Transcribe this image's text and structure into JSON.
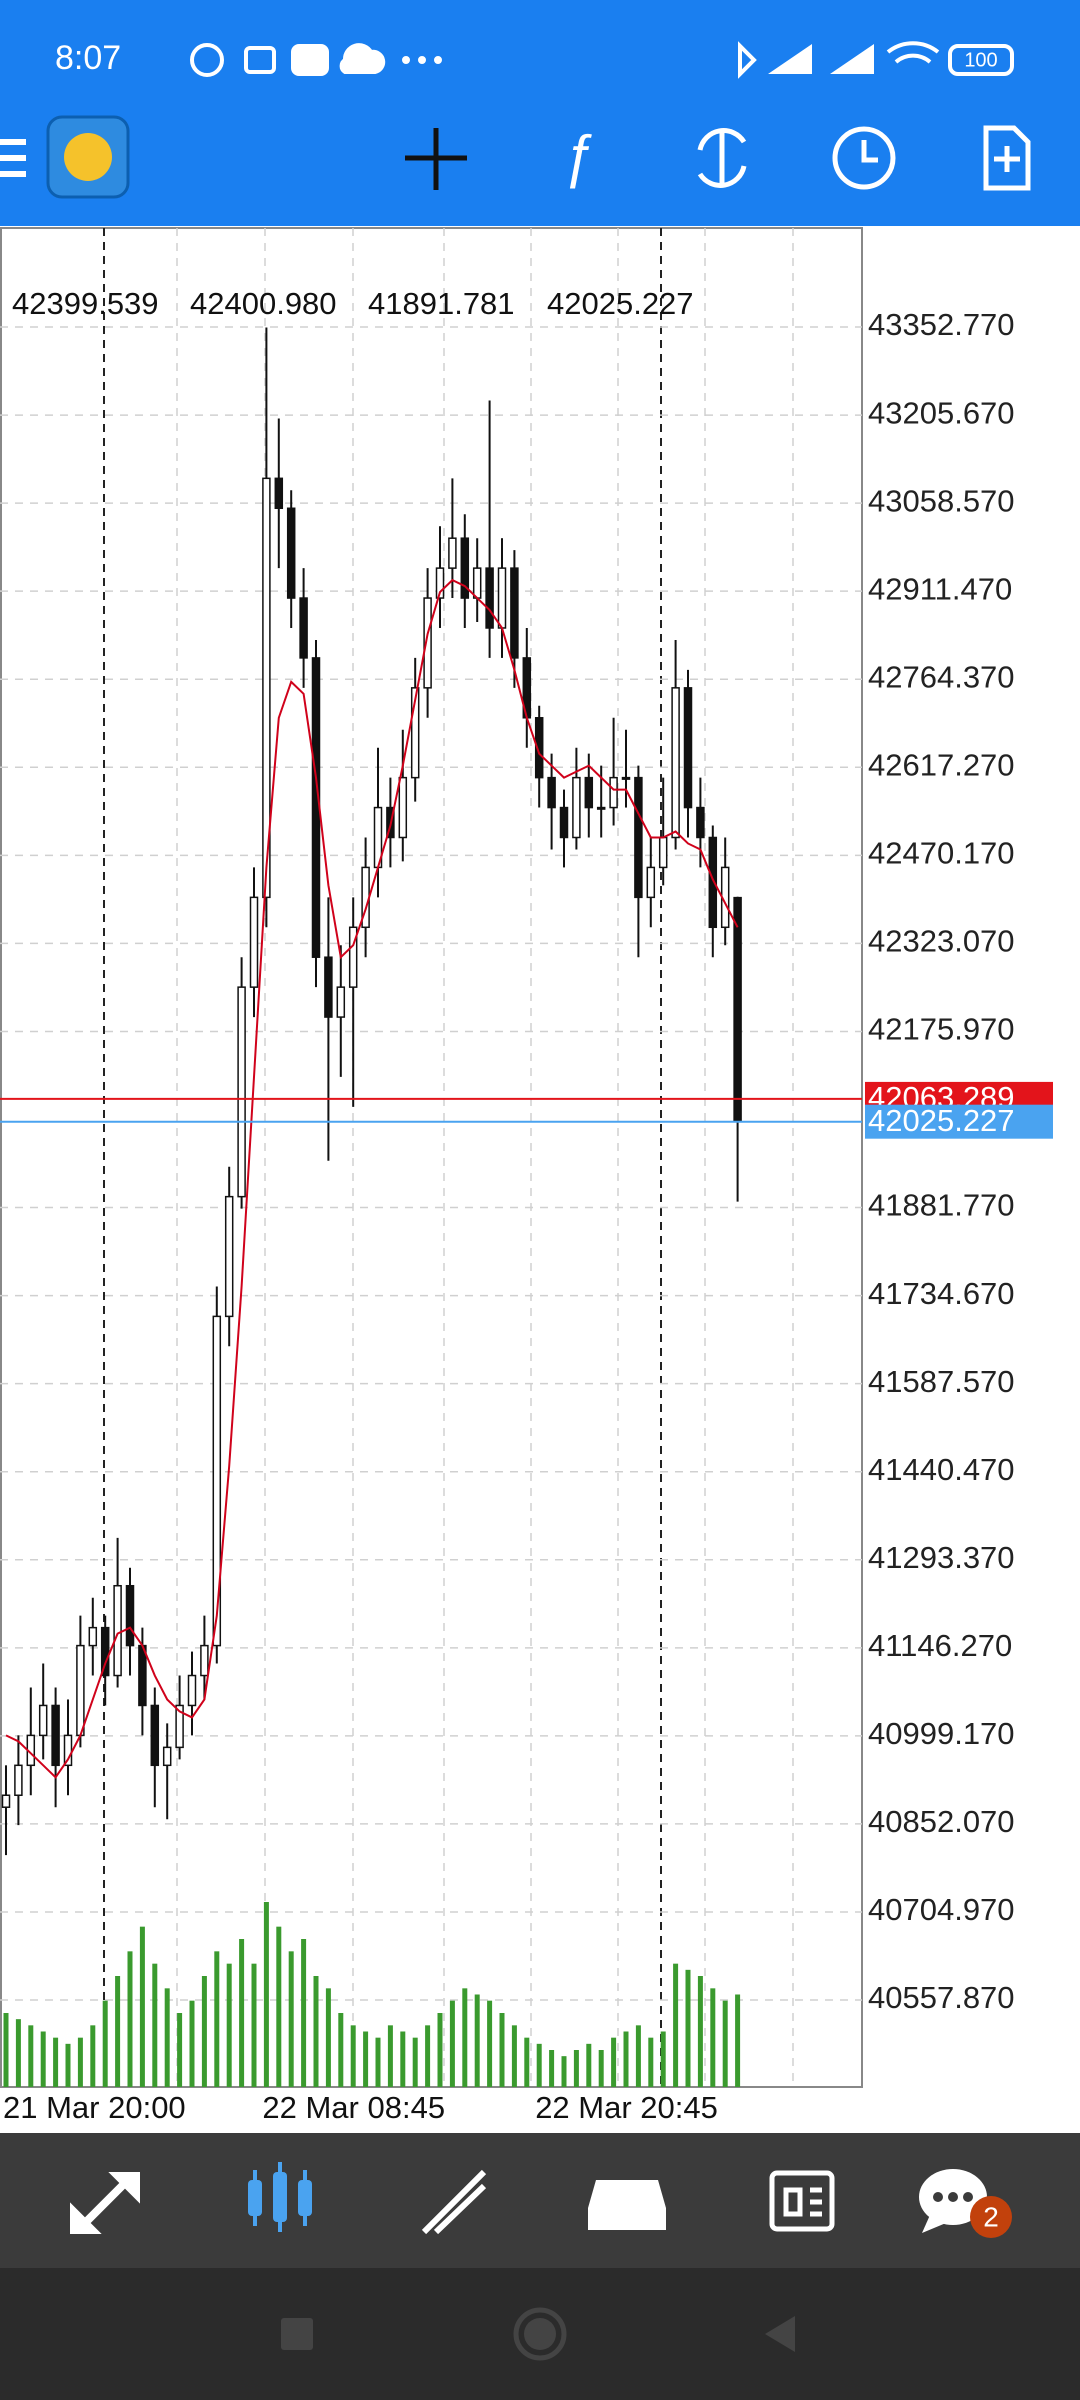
{
  "status_bar": {
    "time": "8:07",
    "battery": "100"
  },
  "chart_data": {
    "type": "candlestick",
    "ohlc_header": [
      "42399.539",
      "42400.980",
      "41891.781",
      "42025.227"
    ],
    "categories": [
      "21 Mar 20:00",
      null,
      null,
      null,
      null,
      null,
      null,
      null,
      null,
      null,
      null,
      null,
      null,
      null,
      null,
      null,
      null,
      null,
      null,
      null,
      null,
      "22 Mar 08:45",
      null,
      null,
      null,
      null,
      null,
      null,
      null,
      null,
      null,
      null,
      null,
      null,
      null,
      null,
      null,
      null,
      null,
      null,
      null,
      null,
      null,
      "22 Mar 20:45",
      null,
      null,
      null,
      null,
      null,
      null,
      null,
      null,
      null,
      null,
      null,
      null,
      null,
      null,
      null,
      null
    ],
    "candles": [
      [
        40880,
        40950,
        40800,
        40900
      ],
      [
        40900,
        41000,
        40850,
        40950
      ],
      [
        40950,
        41080,
        40900,
        41000
      ],
      [
        41000,
        41120,
        40960,
        41050
      ],
      [
        41050,
        41080,
        40880,
        40950
      ],
      [
        40950,
        41060,
        40900,
        41000
      ],
      [
        41000,
        41200,
        40980,
        41150
      ],
      [
        41150,
        41230,
        41100,
        41180
      ],
      [
        41180,
        41200,
        41050,
        41100
      ],
      [
        41100,
        41330,
        41080,
        41250
      ],
      [
        41250,
        41280,
        41100,
        41150
      ],
      [
        41150,
        41180,
        41000,
        41050
      ],
      [
        41050,
        41080,
        40880,
        40950
      ],
      [
        40950,
        41020,
        40860,
        40980
      ],
      [
        40980,
        41100,
        40960,
        41050
      ],
      [
        41050,
        41140,
        41000,
        41100
      ],
      [
        41100,
        41200,
        41060,
        41150
      ],
      [
        41150,
        41750,
        41120,
        41700
      ],
      [
        41700,
        41950,
        41650,
        41900
      ],
      [
        41900,
        42300,
        41880,
        42250
      ],
      [
        42250,
        42450,
        42200,
        42400
      ],
      [
        42400,
        43352,
        42350,
        43100
      ],
      [
        43100,
        43200,
        42950,
        43050
      ],
      [
        43050,
        43080,
        42850,
        42900
      ],
      [
        42900,
        42950,
        42750,
        42800
      ],
      [
        42800,
        42830,
        42250,
        42300
      ],
      [
        42300,
        42400,
        41960,
        42200
      ],
      [
        42200,
        42320,
        42100,
        42250
      ],
      [
        42250,
        42400,
        42050,
        42350
      ],
      [
        42350,
        42500,
        42300,
        42450
      ],
      [
        42450,
        42650,
        42400,
        42550
      ],
      [
        42550,
        42600,
        42450,
        42500
      ],
      [
        42500,
        42680,
        42460,
        42600
      ],
      [
        42600,
        42800,
        42560,
        42750
      ],
      [
        42750,
        42950,
        42700,
        42900
      ],
      [
        42900,
        43020,
        42850,
        42950
      ],
      [
        42950,
        43100,
        42900,
        43000
      ],
      [
        43000,
        43040,
        42850,
        42900
      ],
      [
        42900,
        43000,
        42860,
        42950
      ],
      [
        42950,
        43230,
        42800,
        42850
      ],
      [
        42850,
        43000,
        42800,
        42950
      ],
      [
        42950,
        42980,
        42750,
        42800
      ],
      [
        42800,
        42850,
        42650,
        42700
      ],
      [
        42700,
        42720,
        42550,
        42600
      ],
      [
        42600,
        42640,
        42480,
        42550
      ],
      [
        42550,
        42580,
        42450,
        42500
      ],
      [
        42500,
        42650,
        42480,
        42600
      ],
      [
        42600,
        42640,
        42500,
        42550
      ],
      [
        42550,
        42620,
        42500,
        42550
      ],
      [
        42550,
        42700,
        42520,
        42600
      ],
      [
        42600,
        42680,
        42550,
        42600
      ],
      [
        42600,
        42620,
        42300,
        42400
      ],
      [
        42400,
        42500,
        42350,
        42450
      ],
      [
        42450,
        42600,
        42420,
        42500
      ],
      [
        42500,
        42830,
        42480,
        42750
      ],
      [
        42750,
        42780,
        42500,
        42550
      ],
      [
        42550,
        42600,
        42450,
        42500
      ],
      [
        42500,
        42520,
        42300,
        42350
      ],
      [
        42350,
        42500,
        42320,
        42450
      ],
      [
        42399.539,
        42400.98,
        41891.781,
        42025.227
      ]
    ],
    "ma": {
      "color": "#d0021b",
      "values": [
        41000,
        40990,
        40970,
        40950,
        40930,
        40960,
        41000,
        41060,
        41120,
        41170,
        41180,
        41150,
        41100,
        41060,
        41040,
        41030,
        41060,
        41200,
        41450,
        41750,
        42100,
        42450,
        42700,
        42760,
        42740,
        42600,
        42420,
        42300,
        42320,
        42380,
        42450,
        42520,
        42620,
        42730,
        42840,
        42910,
        42930,
        42920,
        42900,
        42880,
        42850,
        42780,
        42700,
        42640,
        42620,
        42600,
        42610,
        42620,
        42600,
        42580,
        42580,
        42540,
        42500,
        42500,
        42510,
        42490,
        42480,
        42430,
        42390,
        42350
      ]
    },
    "volume": {
      "color": "#3a9a2e",
      "values": [
        60,
        55,
        50,
        45,
        40,
        35,
        40,
        50,
        70,
        90,
        110,
        130,
        100,
        80,
        60,
        70,
        90,
        110,
        100,
        120,
        100,
        150,
        130,
        110,
        120,
        90,
        80,
        60,
        50,
        45,
        40,
        50,
        45,
        40,
        50,
        60,
        70,
        80,
        75,
        70,
        60,
        50,
        40,
        35,
        30,
        25,
        30,
        35,
        30,
        40,
        45,
        50,
        40,
        45,
        100,
        95,
        90,
        80,
        70,
        75
      ]
    },
    "ask": {
      "value": 42063.289,
      "color": "#e3141b"
    },
    "bid": {
      "value": 42025.227,
      "color": "#4aa3f0"
    },
    "ylim": [
      40412.6,
      43518.2
    ],
    "yticks": [
      {
        "value": 43352.77,
        "label": "43352.770"
      },
      {
        "value": 43205.67,
        "label": "43205.670"
      },
      {
        "value": 43058.57,
        "label": "43058.570"
      },
      {
        "value": 42911.47,
        "label": "42911.470"
      },
      {
        "value": 42764.37,
        "label": "42764.370"
      },
      {
        "value": 42617.27,
        "label": "42617.270"
      },
      {
        "value": 42470.17,
        "label": "42470.170"
      },
      {
        "value": 42323.07,
        "label": "42323.070"
      },
      {
        "value": 42175.97,
        "label": "42175.970"
      },
      {
        "value": 41881.77,
        "label": "41881.770"
      },
      {
        "value": 41734.67,
        "label": "41734.670"
      },
      {
        "value": 41587.57,
        "label": "41587.570"
      },
      {
        "value": 41440.47,
        "label": "41440.470"
      },
      {
        "value": 41293.37,
        "label": "41293.370"
      },
      {
        "value": 41146.27,
        "label": "41146.270"
      },
      {
        "value": 40999.17,
        "label": "40999.170"
      },
      {
        "value": 40852.07,
        "label": "40852.070"
      },
      {
        "value": 40704.97,
        "label": "40704.970"
      },
      {
        "value": 40557.87,
        "label": "40557.870"
      }
    ],
    "grid": true
  },
  "bottom_nav": {
    "badge": "2"
  }
}
